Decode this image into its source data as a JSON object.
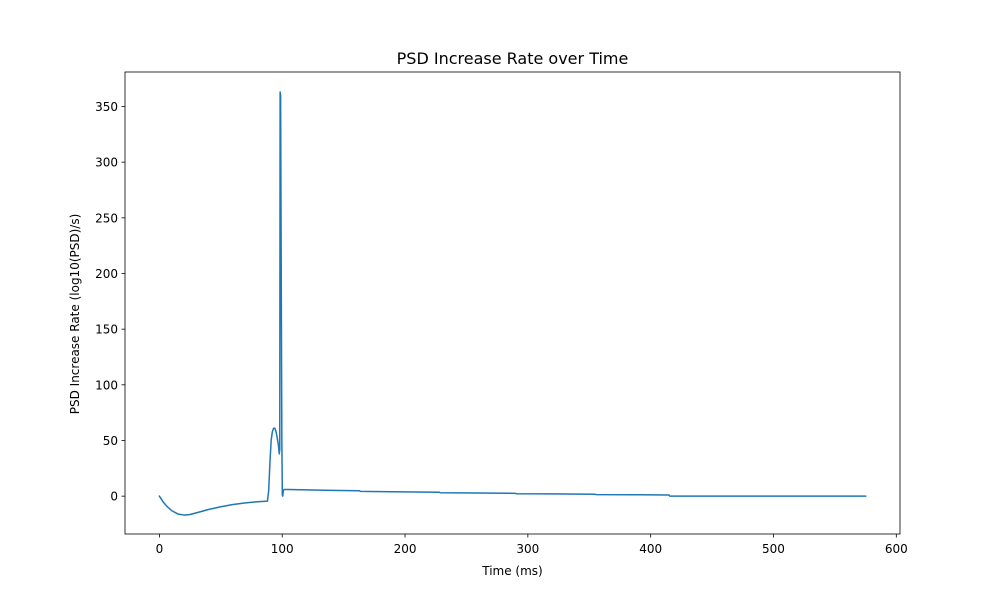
{
  "chart_data": {
    "type": "line",
    "title": "PSD Increase Rate over Time",
    "xlabel": "Time (ms)",
    "ylabel": "PSD Increase Rate (log10(PSD)/s)",
    "xlim": [
      -28,
      603
    ],
    "ylim": [
      -34,
      381
    ],
    "xticks": [
      0,
      100,
      200,
      300,
      400,
      500,
      600
    ],
    "yticks": [
      0,
      50,
      100,
      150,
      200,
      250,
      300,
      350
    ],
    "grid": false,
    "series": [
      {
        "color": "#1f77b4",
        "x": [
          0,
          3,
          6,
          10,
          15,
          20,
          25,
          30,
          40,
          50,
          60,
          70,
          80,
          88,
          89,
          90,
          91,
          92,
          93,
          94,
          95,
          96,
          97,
          97.6,
          98,
          98.3,
          98.7,
          99.2,
          99.7,
          100.1,
          100.4,
          101,
          101.5,
          105,
          120,
          140,
          163,
          163.5,
          190,
          228,
          228.5,
          260,
          290,
          290.5,
          320,
          355,
          355.5,
          390,
          415,
          415.5,
          450,
          500,
          540,
          575
        ],
        "y": [
          0,
          -5,
          -9,
          -13,
          -16,
          -17,
          -16.5,
          -15,
          -12,
          -9.5,
          -7.5,
          -6,
          -5,
          -4.5,
          5,
          30,
          50,
          58,
          61,
          61,
          58,
          52,
          45,
          38,
          42,
          363,
          360,
          200,
          50,
          1,
          0,
          5.5,
          6,
          6,
          5.6,
          5.2,
          4.8,
          4.3,
          3.9,
          3.5,
          3.1,
          2.8,
          2.5,
          2.2,
          2.0,
          1.7,
          1.4,
          1.2,
          1.0,
          0,
          0,
          0,
          0,
          0
        ]
      }
    ]
  }
}
